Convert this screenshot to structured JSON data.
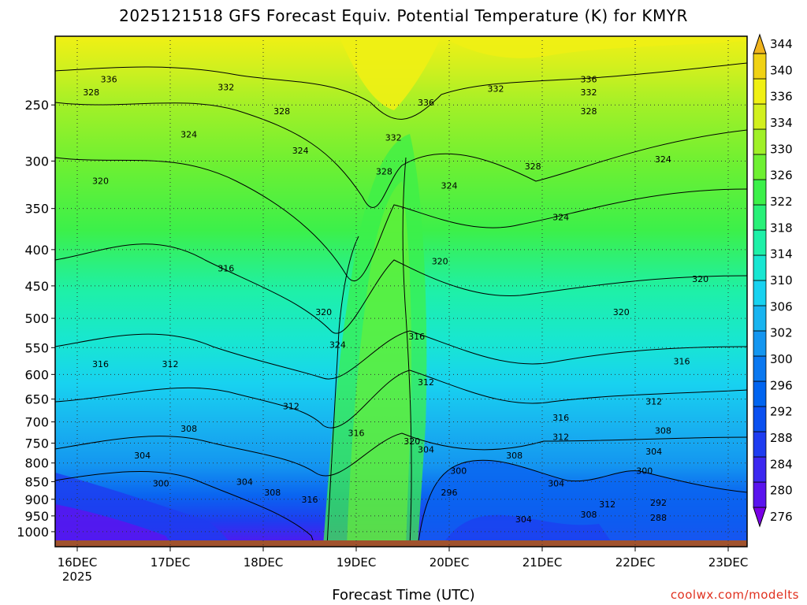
{
  "chart_data": {
    "type": "heatmap",
    "title": "2025121518 GFS Forecast Equiv. Potential Temperature (K) for KMYR",
    "xlabel": "Forecast Time (UTC)",
    "ylabel": "",
    "y_scale": "log (pressure, hPa)",
    "ylim": [
      1050,
      200
    ],
    "y_ticks": [
      "250",
      "300",
      "350",
      "400",
      "450",
      "500",
      "550",
      "600",
      "650",
      "700",
      "750",
      "800",
      "850",
      "900",
      "950",
      "1000"
    ],
    "x_ticks": [
      {
        "label": "16DEC",
        "sub": "2025"
      },
      {
        "label": "17DEC",
        "sub": ""
      },
      {
        "label": "18DEC",
        "sub": ""
      },
      {
        "label": "19DEC",
        "sub": ""
      },
      {
        "label": "20DEC",
        "sub": ""
      },
      {
        "label": "21DEC",
        "sub": ""
      },
      {
        "label": "22DEC",
        "sub": ""
      },
      {
        "label": "23DEC",
        "sub": ""
      }
    ],
    "colorbar": {
      "levels": [
        "276",
        "280",
        "284",
        "288",
        "292",
        "296",
        "300",
        "302",
        "306",
        "310",
        "314",
        "318",
        "322",
        "326",
        "330",
        "334",
        "336",
        "340",
        "344"
      ],
      "colors": [
        "#7a00e6",
        "#5a14ee",
        "#3c28f0",
        "#1e3cf0",
        "#0a50f0",
        "#0064f0",
        "#0a78f0",
        "#1496f0",
        "#18b4f0",
        "#18d2f0",
        "#18e6d2",
        "#1ef0a8",
        "#28f078",
        "#3cf04a",
        "#6ef032",
        "#a0f028",
        "#d2f01e",
        "#f0f014",
        "#f0d214",
        "#f0b41e"
      ]
    },
    "contour_labels": [
      {
        "text": "336",
        "x": 0.34,
        "y": 230
      },
      {
        "text": "336",
        "x": 5.5,
        "y": 230
      },
      {
        "text": "336",
        "x": 3.75,
        "y": 248
      },
      {
        "text": "332",
        "x": 1.6,
        "y": 236
      },
      {
        "text": "332",
        "x": 4.5,
        "y": 237
      },
      {
        "text": "332",
        "x": 5.5,
        "y": 240
      },
      {
        "text": "332",
        "x": 3.4,
        "y": 278
      },
      {
        "text": "328",
        "x": 0.15,
        "y": 240
      },
      {
        "text": "328",
        "x": 2.2,
        "y": 255
      },
      {
        "text": "328",
        "x": 5.5,
        "y": 255
      },
      {
        "text": "328",
        "x": 3.3,
        "y": 310
      },
      {
        "text": "328",
        "x": 4.9,
        "y": 305
      },
      {
        "text": "324",
        "x": 1.2,
        "y": 275
      },
      {
        "text": "324",
        "x": 2.4,
        "y": 290
      },
      {
        "text": "324",
        "x": 4.0,
        "y": 325
      },
      {
        "text": "324",
        "x": 6.3,
        "y": 298
      },
      {
        "text": "324",
        "x": 5.2,
        "y": 360
      },
      {
        "text": "324",
        "x": 2.8,
        "y": 545
      },
      {
        "text": "320",
        "x": 0.25,
        "y": 320
      },
      {
        "text": "320",
        "x": 3.9,
        "y": 415
      },
      {
        "text": "320",
        "x": 6.7,
        "y": 440
      },
      {
        "text": "320",
        "x": 5.85,
        "y": 490
      },
      {
        "text": "320",
        "x": 2.65,
        "y": 490
      },
      {
        "text": "320",
        "x": 3.6,
        "y": 745
      },
      {
        "text": "316",
        "x": 1.6,
        "y": 425
      },
      {
        "text": "316",
        "x": 0.25,
        "y": 580
      },
      {
        "text": "316",
        "x": 3.65,
        "y": 530
      },
      {
        "text": "316",
        "x": 6.5,
        "y": 575
      },
      {
        "text": "316",
        "x": 5.2,
        "y": 690
      },
      {
        "text": "316",
        "x": 3.0,
        "y": 725
      },
      {
        "text": "316",
        "x": 2.5,
        "y": 900
      },
      {
        "text": "312",
        "x": 1.0,
        "y": 580
      },
      {
        "text": "312",
        "x": 3.75,
        "y": 615
      },
      {
        "text": "312",
        "x": 2.3,
        "y": 665
      },
      {
        "text": "312",
        "x": 6.2,
        "y": 655
      },
      {
        "text": "312",
        "x": 5.2,
        "y": 735
      },
      {
        "text": "312",
        "x": 5.7,
        "y": 915
      },
      {
        "text": "308",
        "x": 1.2,
        "y": 715
      },
      {
        "text": "308",
        "x": 6.3,
        "y": 720
      },
      {
        "text": "308",
        "x": 4.7,
        "y": 780
      },
      {
        "text": "308",
        "x": 2.1,
        "y": 880
      },
      {
        "text": "308",
        "x": 5.5,
        "y": 945
      },
      {
        "text": "304",
        "x": 0.7,
        "y": 780
      },
      {
        "text": "304",
        "x": 1.8,
        "y": 850
      },
      {
        "text": "304",
        "x": 3.75,
        "y": 765
      },
      {
        "text": "304",
        "x": 6.2,
        "y": 770
      },
      {
        "text": "304",
        "x": 5.15,
        "y": 855
      },
      {
        "text": "304",
        "x": 4.8,
        "y": 960
      },
      {
        "text": "300",
        "x": 0.9,
        "y": 855
      },
      {
        "text": "300",
        "x": 4.1,
        "y": 820
      },
      {
        "text": "300",
        "x": 6.1,
        "y": 820
      },
      {
        "text": "296",
        "x": 4.0,
        "y": 880
      },
      {
        "text": "292",
        "x": 6.25,
        "y": 910
      },
      {
        "text": "288",
        "x": 6.25,
        "y": 955
      }
    ]
  },
  "credit": "coolwx.com/modelts"
}
